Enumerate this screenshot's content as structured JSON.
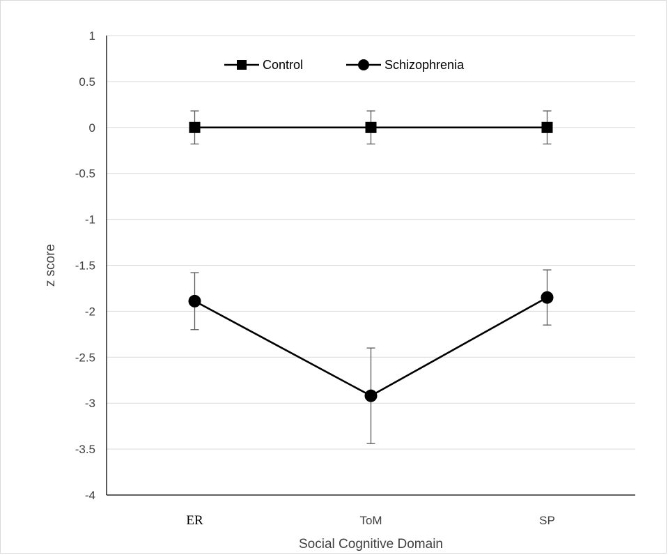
{
  "chart_data": {
    "type": "line",
    "xlabel": "Social Cognitive Domain",
    "ylabel": "z score",
    "categories": [
      "ER",
      "ToM",
      "SP"
    ],
    "ylim": [
      -4,
      1
    ],
    "yticks": [
      1,
      0.5,
      0,
      -0.5,
      -1,
      -1.5,
      -2,
      -2.5,
      -3,
      -3.5,
      -4
    ],
    "grid": true,
    "legend_position": "top",
    "series": [
      {
        "name": "Control",
        "marker": "square",
        "color": "#000000",
        "values": [
          0,
          0,
          0
        ],
        "error": [
          0.18,
          0.18,
          0.18
        ]
      },
      {
        "name": "Schizophrenia",
        "marker": "circle",
        "color": "#000000",
        "values": [
          -1.89,
          -2.92,
          -1.85
        ],
        "error": [
          0.31,
          0.52,
          0.3
        ]
      }
    ]
  }
}
